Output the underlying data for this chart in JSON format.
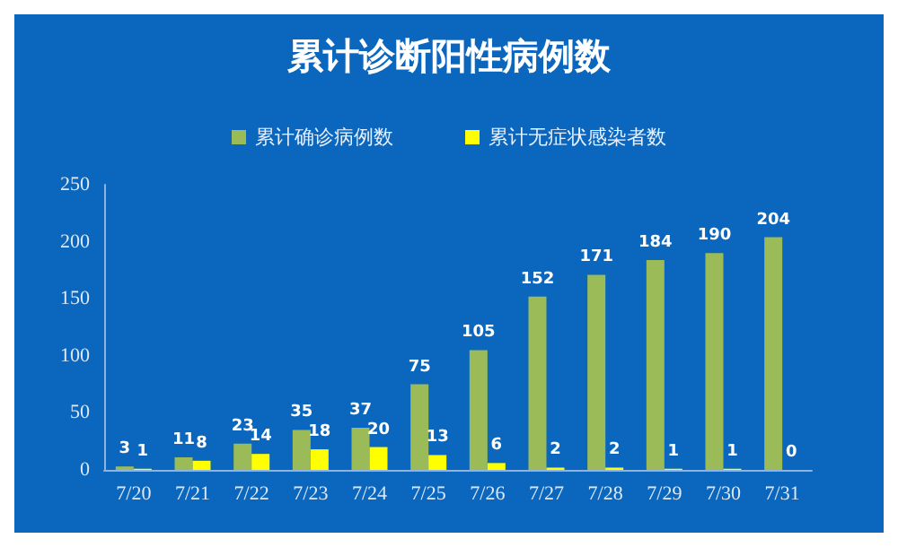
{
  "chart_data": {
    "type": "bar",
    "title": "累计诊断阳性病例数",
    "categories": [
      "7/20",
      "7/21",
      "7/22",
      "7/23",
      "7/24",
      "7/25",
      "7/26",
      "7/27",
      "7/28",
      "7/29",
      "7/30",
      "7/31"
    ],
    "series": [
      {
        "name": "累计确诊病例数",
        "color": "#9bbb59",
        "values": [
          3,
          11,
          23,
          35,
          37,
          75,
          105,
          152,
          171,
          184,
          190,
          204
        ]
      },
      {
        "name": "累计无症状感染者数",
        "color": "#ffff00",
        "values": [
          1,
          8,
          14,
          18,
          20,
          13,
          6,
          2,
          2,
          1,
          1,
          0
        ]
      }
    ],
    "ylim": [
      0,
      250
    ],
    "yticks": [
      0,
      50,
      100,
      150,
      200,
      250
    ],
    "grid": false,
    "legend": "top",
    "data_labels": true
  }
}
